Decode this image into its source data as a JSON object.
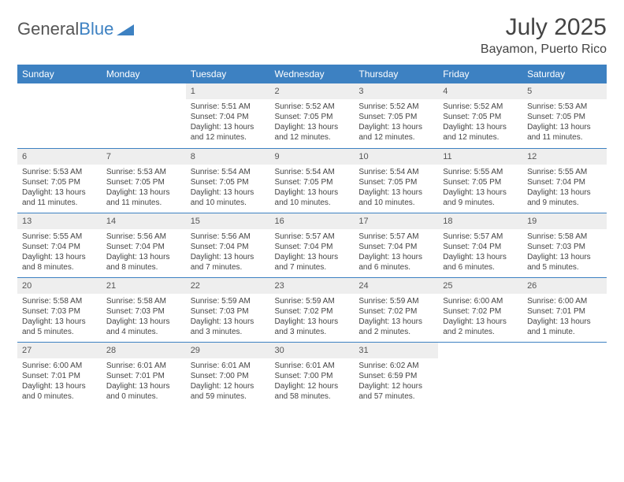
{
  "brand": {
    "part1": "General",
    "part2": "Blue"
  },
  "title": "July 2025",
  "location": "Bayamon, Puerto Rico",
  "colors": {
    "accent": "#3d81c2",
    "header_text": "#ffffff",
    "daynum_bg": "#eeeeee",
    "text": "#444444",
    "background": "#ffffff"
  },
  "day_headers": [
    "Sunday",
    "Monday",
    "Tuesday",
    "Wednesday",
    "Thursday",
    "Friday",
    "Saturday"
  ],
  "weeks": [
    [
      null,
      null,
      {
        "n": "1",
        "sr": "5:51 AM",
        "ss": "7:04 PM",
        "dl": "13 hours and 12 minutes."
      },
      {
        "n": "2",
        "sr": "5:52 AM",
        "ss": "7:05 PM",
        "dl": "13 hours and 12 minutes."
      },
      {
        "n": "3",
        "sr": "5:52 AM",
        "ss": "7:05 PM",
        "dl": "13 hours and 12 minutes."
      },
      {
        "n": "4",
        "sr": "5:52 AM",
        "ss": "7:05 PM",
        "dl": "13 hours and 12 minutes."
      },
      {
        "n": "5",
        "sr": "5:53 AM",
        "ss": "7:05 PM",
        "dl": "13 hours and 11 minutes."
      }
    ],
    [
      {
        "n": "6",
        "sr": "5:53 AM",
        "ss": "7:05 PM",
        "dl": "13 hours and 11 minutes."
      },
      {
        "n": "7",
        "sr": "5:53 AM",
        "ss": "7:05 PM",
        "dl": "13 hours and 11 minutes."
      },
      {
        "n": "8",
        "sr": "5:54 AM",
        "ss": "7:05 PM",
        "dl": "13 hours and 10 minutes."
      },
      {
        "n": "9",
        "sr": "5:54 AM",
        "ss": "7:05 PM",
        "dl": "13 hours and 10 minutes."
      },
      {
        "n": "10",
        "sr": "5:54 AM",
        "ss": "7:05 PM",
        "dl": "13 hours and 10 minutes."
      },
      {
        "n": "11",
        "sr": "5:55 AM",
        "ss": "7:05 PM",
        "dl": "13 hours and 9 minutes."
      },
      {
        "n": "12",
        "sr": "5:55 AM",
        "ss": "7:04 PM",
        "dl": "13 hours and 9 minutes."
      }
    ],
    [
      {
        "n": "13",
        "sr": "5:55 AM",
        "ss": "7:04 PM",
        "dl": "13 hours and 8 minutes."
      },
      {
        "n": "14",
        "sr": "5:56 AM",
        "ss": "7:04 PM",
        "dl": "13 hours and 8 minutes."
      },
      {
        "n": "15",
        "sr": "5:56 AM",
        "ss": "7:04 PM",
        "dl": "13 hours and 7 minutes."
      },
      {
        "n": "16",
        "sr": "5:57 AM",
        "ss": "7:04 PM",
        "dl": "13 hours and 7 minutes."
      },
      {
        "n": "17",
        "sr": "5:57 AM",
        "ss": "7:04 PM",
        "dl": "13 hours and 6 minutes."
      },
      {
        "n": "18",
        "sr": "5:57 AM",
        "ss": "7:04 PM",
        "dl": "13 hours and 6 minutes."
      },
      {
        "n": "19",
        "sr": "5:58 AM",
        "ss": "7:03 PM",
        "dl": "13 hours and 5 minutes."
      }
    ],
    [
      {
        "n": "20",
        "sr": "5:58 AM",
        "ss": "7:03 PM",
        "dl": "13 hours and 5 minutes."
      },
      {
        "n": "21",
        "sr": "5:58 AM",
        "ss": "7:03 PM",
        "dl": "13 hours and 4 minutes."
      },
      {
        "n": "22",
        "sr": "5:59 AM",
        "ss": "7:03 PM",
        "dl": "13 hours and 3 minutes."
      },
      {
        "n": "23",
        "sr": "5:59 AM",
        "ss": "7:02 PM",
        "dl": "13 hours and 3 minutes."
      },
      {
        "n": "24",
        "sr": "5:59 AM",
        "ss": "7:02 PM",
        "dl": "13 hours and 2 minutes."
      },
      {
        "n": "25",
        "sr": "6:00 AM",
        "ss": "7:02 PM",
        "dl": "13 hours and 2 minutes."
      },
      {
        "n": "26",
        "sr": "6:00 AM",
        "ss": "7:01 PM",
        "dl": "13 hours and 1 minute."
      }
    ],
    [
      {
        "n": "27",
        "sr": "6:00 AM",
        "ss": "7:01 PM",
        "dl": "13 hours and 0 minutes."
      },
      {
        "n": "28",
        "sr": "6:01 AM",
        "ss": "7:01 PM",
        "dl": "13 hours and 0 minutes."
      },
      {
        "n": "29",
        "sr": "6:01 AM",
        "ss": "7:00 PM",
        "dl": "12 hours and 59 minutes."
      },
      {
        "n": "30",
        "sr": "6:01 AM",
        "ss": "7:00 PM",
        "dl": "12 hours and 58 minutes."
      },
      {
        "n": "31",
        "sr": "6:02 AM",
        "ss": "6:59 PM",
        "dl": "12 hours and 57 minutes."
      },
      null,
      null
    ]
  ],
  "labels": {
    "sunrise": "Sunrise:",
    "sunset": "Sunset:",
    "daylight": "Daylight:"
  }
}
